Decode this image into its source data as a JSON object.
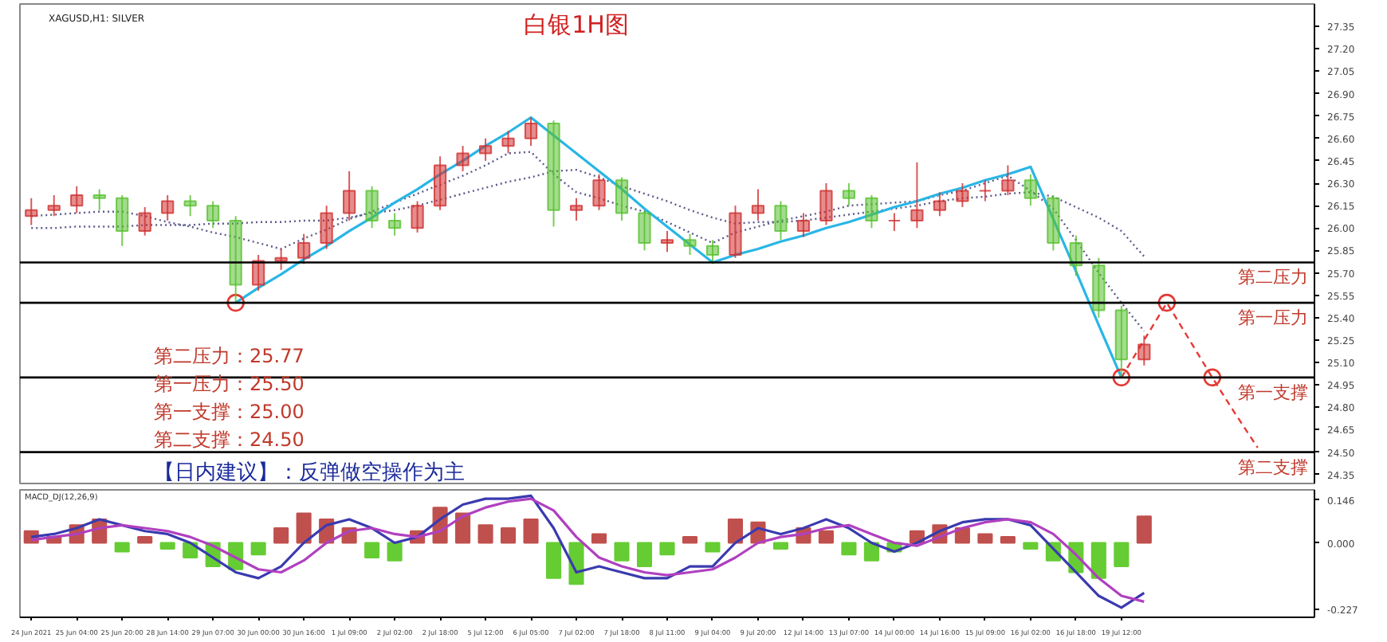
{
  "chart_data": [
    {
      "type": "candlestick",
      "title": "白银1H图",
      "subtitle": "XAGUSD,H1: SILVER",
      "categories": [
        null,
        null,
        null,
        null,
        null,
        null,
        null,
        null,
        null,
        null,
        null,
        null,
        null,
        null,
        null,
        null,
        null,
        null,
        null,
        null,
        null,
        null,
        null,
        null,
        null,
        null,
        null,
        null,
        null,
        null,
        null,
        null,
        null,
        null,
        null,
        null,
        null,
        null,
        null,
        null,
        null,
        null,
        null,
        null,
        null,
        null,
        null,
        null,
        null,
        null,
        null,
        null,
        null,
        null,
        null,
        null,
        null
      ],
      "ohlc": [
        [
          26.08,
          26.2,
          26.02,
          26.12
        ],
        [
          26.12,
          26.22,
          26.08,
          26.15
        ],
        [
          26.15,
          26.28,
          26.1,
          26.22
        ],
        [
          26.22,
          26.26,
          26.12,
          26.2
        ],
        [
          26.2,
          26.22,
          25.88,
          25.98
        ],
        [
          25.98,
          26.14,
          25.95,
          26.1
        ],
        [
          26.1,
          26.22,
          26.05,
          26.18
        ],
        [
          26.18,
          26.22,
          26.08,
          26.15
        ],
        [
          26.15,
          26.18,
          26.0,
          26.05
        ],
        [
          26.05,
          26.08,
          25.5,
          25.62
        ],
        [
          25.62,
          25.82,
          25.58,
          25.78
        ],
        [
          25.78,
          25.86,
          25.72,
          25.8
        ],
        [
          25.8,
          25.96,
          25.76,
          25.9
        ],
        [
          25.9,
          26.15,
          25.86,
          26.1
        ],
        [
          26.1,
          26.38,
          26.05,
          26.25
        ],
        [
          26.25,
          26.28,
          26.0,
          26.05
        ],
        [
          26.05,
          26.1,
          25.95,
          26.0
        ],
        [
          26.0,
          26.18,
          25.97,
          26.15
        ],
        [
          26.15,
          26.48,
          26.12,
          26.42
        ],
        [
          26.42,
          26.55,
          26.38,
          26.5
        ],
        [
          26.5,
          26.6,
          26.45,
          26.55
        ],
        [
          26.55,
          26.65,
          26.5,
          26.6
        ],
        [
          26.6,
          26.74,
          26.55,
          26.7
        ],
        [
          26.7,
          26.72,
          26.01,
          26.12
        ],
        [
          26.12,
          26.2,
          26.05,
          26.15
        ],
        [
          26.15,
          26.36,
          26.12,
          26.32
        ],
        [
          26.32,
          26.34,
          26.05,
          26.1
        ],
        [
          26.1,
          26.12,
          25.85,
          25.9
        ],
        [
          25.9,
          25.98,
          25.84,
          25.92
        ],
        [
          25.92,
          25.96,
          25.82,
          25.88
        ],
        [
          25.88,
          25.92,
          25.76,
          25.82
        ],
        [
          25.82,
          26.15,
          25.8,
          26.1
        ],
        [
          26.1,
          26.26,
          26.05,
          26.15
        ],
        [
          26.15,
          26.18,
          25.92,
          25.98
        ],
        [
          25.98,
          26.1,
          25.94,
          26.05
        ],
        [
          26.05,
          26.3,
          26.02,
          26.25
        ],
        [
          26.25,
          26.3,
          26.15,
          26.2
        ],
        [
          26.2,
          26.22,
          26.0,
          26.05
        ],
        [
          26.05,
          26.1,
          25.98,
          26.05
        ],
        [
          26.05,
          26.44,
          26.0,
          26.12
        ],
        [
          26.12,
          26.24,
          26.08,
          26.18
        ],
        [
          26.18,
          26.3,
          26.14,
          26.25
        ],
        [
          26.25,
          26.32,
          26.18,
          26.25
        ],
        [
          26.25,
          26.42,
          26.22,
          26.32
        ],
        [
          26.32,
          26.36,
          26.15,
          26.2
        ],
        [
          26.2,
          26.22,
          25.85,
          25.9
        ],
        [
          25.9,
          25.95,
          25.68,
          25.75
        ],
        [
          25.75,
          25.8,
          25.4,
          25.45
        ],
        [
          25.45,
          25.48,
          25.0,
          25.12
        ],
        [
          25.12,
          25.28,
          25.08,
          25.22
        ],
        null,
        null,
        null,
        null,
        null,
        null,
        null
      ],
      "series": [
        {
          "type": "line",
          "color": "#5c5c8c",
          "line_style": "dotted",
          "values": [
            26.0,
            26.0,
            26.01,
            26.01,
            26.01,
            26.02,
            26.02,
            26.02,
            26.03,
            26.03,
            26.04,
            26.04,
            26.05,
            26.05,
            26.07,
            26.1,
            26.12,
            26.15,
            26.19,
            26.23,
            26.27,
            26.31,
            26.34,
            26.38,
            26.39,
            26.34,
            26.28,
            26.23,
            26.18,
            26.12,
            26.07,
            26.03,
            26.04,
            26.04,
            26.05,
            26.07,
            26.09,
            26.11,
            26.13,
            26.15,
            26.18,
            26.2,
            26.21,
            26.23,
            26.24,
            26.21,
            26.14,
            26.07,
            25.98,
            25.81,
            null,
            null,
            null,
            null,
            null,
            null,
            null
          ]
        },
        {
          "type": "line",
          "color": "#5c5c8c",
          "line_style": "dotted",
          "values": [
            26.08,
            26.09,
            26.1,
            26.11,
            26.11,
            26.08,
            26.04,
            26.01,
            25.97,
            25.94,
            25.9,
            25.86,
            25.93,
            25.99,
            26.06,
            26.11,
            26.17,
            26.23,
            26.29,
            26.35,
            26.42,
            26.5,
            26.51,
            26.36,
            26.24,
            26.2,
            26.15,
            26.11,
            26.04,
            25.97,
            25.9,
            25.97,
            26.01,
            26.05,
            26.08,
            26.11,
            26.15,
            26.16,
            26.17,
            26.18,
            26.22,
            26.25,
            26.3,
            26.35,
            26.25,
            26.13,
            25.92,
            25.7,
            25.5,
            25.31,
            null,
            null,
            null,
            null,
            null,
            null,
            null
          ]
        },
        {
          "type": "line",
          "color": "#29b6e6",
          "line_style": "solid",
          "values": [
            null,
            null,
            null,
            null,
            null,
            null,
            null,
            null,
            null,
            25.5,
            25.6,
            25.69,
            25.79,
            25.88,
            25.98,
            26.07,
            26.17,
            26.26,
            26.36,
            26.45,
            26.55,
            26.64,
            26.74,
            26.62,
            26.5,
            26.38,
            26.26,
            26.13,
            26.01,
            25.89,
            25.77,
            25.82,
            25.86,
            25.91,
            25.95,
            26.0,
            26.04,
            26.09,
            26.14,
            26.18,
            26.23,
            26.27,
            26.32,
            26.36,
            26.41,
            26.06,
            25.71,
            25.35,
            25.0,
            null,
            null,
            null,
            null,
            null,
            null,
            null,
            null
          ]
        },
        {
          "type": "line",
          "color": "#e53935",
          "line_style": "dashed",
          "values": [
            null,
            null,
            null,
            null,
            null,
            null,
            null,
            null,
            null,
            null,
            null,
            null,
            null,
            null,
            null,
            null,
            null,
            null,
            null,
            null,
            null,
            null,
            null,
            null,
            null,
            null,
            null,
            null,
            null,
            null,
            null,
            null,
            null,
            null,
            null,
            null,
            null,
            null,
            null,
            null,
            null,
            null,
            null,
            null,
            null,
            null,
            null,
            null,
            25.0,
            25.25,
            25.5,
            25.25,
            25.0,
            24.76,
            24.53,
            null,
            null
          ]
        },
        {
          "type": "scatter",
          "color": "#e53935",
          "marker": "circle",
          "values": [
            null,
            null,
            null,
            null,
            null,
            null,
            null,
            null,
            null,
            25.5,
            null,
            null,
            null,
            null,
            null,
            null,
            null,
            null,
            null,
            null,
            null,
            null,
            null,
            null,
            null,
            null,
            null,
            null,
            null,
            null,
            null,
            null,
            null,
            null,
            null,
            null,
            null,
            null,
            null,
            null,
            null,
            null,
            null,
            null,
            null,
            null,
            null,
            null,
            25.0,
            null,
            25.5,
            null,
            25.0,
            null,
            null,
            null,
            null
          ]
        }
      ],
      "ref_lines": [
        {
          "axis": "y",
          "value": 25.77,
          "label": "第二压力",
          "color": "#000000"
        },
        {
          "axis": "y",
          "value": 25.5,
          "label": "第一压力",
          "color": "#000000"
        },
        {
          "axis": "y",
          "value": 25.0,
          "label": "第一支撑",
          "color": "#000000"
        },
        {
          "axis": "y",
          "value": 24.5,
          "label": "第二支撑",
          "color": "#000000"
        }
      ],
      "annotations": [
        "第二压力：25.77",
        "第一压力：25.50",
        "第一支撑：25.00",
        "第二支撑：24.50",
        "【日内建议】：反弹做空操作为主"
      ],
      "ylim": [
        24.29,
        27.5
      ],
      "yticks": [
        {
          "value": 27.35,
          "label": "27.35"
        },
        {
          "value": 27.2,
          "label": "27.20"
        },
        {
          "value": 27.05,
          "label": "27.05"
        },
        {
          "value": 26.9,
          "label": "26.90"
        },
        {
          "value": 26.75,
          "label": "26.75"
        },
        {
          "value": 26.6,
          "label": "26.60"
        },
        {
          "value": 26.45,
          "label": "26.45"
        },
        {
          "value": 26.3,
          "label": "26.30"
        },
        {
          "value": 26.15,
          "label": "26.15"
        },
        {
          "value": 26.0,
          "label": "26.00"
        },
        {
          "value": 25.85,
          "label": "25.85"
        },
        {
          "value": 25.7,
          "label": "25.70"
        },
        {
          "value": 25.55,
          "label": "25.55"
        },
        {
          "value": 25.4,
          "label": "25.40"
        },
        {
          "value": 25.25,
          "label": "25.25"
        },
        {
          "value": 25.1,
          "label": "25.10"
        },
        {
          "value": 24.95,
          "label": "24.95"
        },
        {
          "value": 24.8,
          "label": "24.80"
        },
        {
          "value": 24.65,
          "label": "24.65"
        },
        {
          "value": 24.5,
          "label": "24.50"
        },
        {
          "value": 24.35,
          "label": "24.35"
        }
      ],
      "tick_labels": "y",
      "grid": false
    },
    {
      "type": "bar",
      "title": "MACD_DJ(12,26,9)",
      "categories": [
        "24 Jun 2021",
        null,
        "25 Jun 04:00",
        null,
        "25 Jun 20:00",
        null,
        "28 Jun 14:00",
        null,
        "29 Jun 07:00",
        null,
        "30 Jun 00:00",
        null,
        "30 Jun 16:00",
        null,
        "1 Jul 09:00",
        null,
        "2 Jul 02:00",
        null,
        "2 Jul 18:00",
        null,
        "5 Jul 12:00",
        null,
        "6 Jul 05:00",
        null,
        "7 Jul 02:00",
        null,
        "7 Jul 18:00",
        null,
        "8 Jul 11:00",
        null,
        "9 Jul 04:00",
        null,
        "9 Jul 20:00",
        null,
        "12 Jul 14:00",
        null,
        "13 Jul 07:00",
        null,
        "14 Jul 00:00",
        null,
        "14 Jul 16:00",
        null,
        "15 Jul 09:00",
        null,
        "16 Jul 02:00",
        null,
        "16 Jul 18:00",
        null,
        "19 Jul 12:00",
        null,
        null,
        null,
        null,
        null,
        null,
        null,
        null
      ],
      "series": [
        {
          "type": "bar",
          "values": [
            0.04,
            0.02,
            0.06,
            0.08,
            -0.03,
            0.02,
            -0.02,
            -0.05,
            -0.08,
            -0.09,
            -0.04,
            0.05,
            0.1,
            0.08,
            0.05,
            -0.05,
            -0.06,
            0.04,
            0.12,
            0.1,
            0.06,
            0.05,
            0.08,
            -0.12,
            -0.14,
            0.03,
            -0.06,
            -0.08,
            -0.04,
            0.02,
            -0.03,
            0.08,
            0.07,
            -0.02,
            0.05,
            0.04,
            -0.04,
            -0.06,
            -0.03,
            0.04,
            0.06,
            0.05,
            0.03,
            0.02,
            -0.02,
            -0.06,
            -0.1,
            -0.12,
            -0.08,
            0.09,
            null,
            null,
            null,
            null,
            null,
            null,
            null
          ],
          "colors": [
            "#c0504d",
            "#c0504d",
            "#c0504d",
            "#c0504d",
            "#66cc33",
            "#c0504d",
            "#66cc33",
            "#66cc33",
            "#66cc33",
            "#66cc33",
            "#66cc33",
            "#c0504d",
            "#c0504d",
            "#c0504d",
            "#c0504d",
            "#66cc33",
            "#66cc33",
            "#c0504d",
            "#c0504d",
            "#c0504d",
            "#c0504d",
            "#c0504d",
            "#c0504d",
            "#66cc33",
            "#66cc33",
            "#c0504d",
            "#66cc33",
            "#66cc33",
            "#66cc33",
            "#c0504d",
            "#66cc33",
            "#c0504d",
            "#c0504d",
            "#66cc33",
            "#c0504d",
            "#c0504d",
            "#66cc33",
            "#66cc33",
            "#66cc33",
            "#c0504d",
            "#c0504d",
            "#c0504d",
            "#c0504d",
            "#c0504d",
            "#66cc33",
            "#66cc33",
            "#66cc33",
            "#66cc33",
            "#66cc33",
            "#c0504d",
            null,
            null,
            null,
            null,
            null,
            null,
            null
          ]
        },
        {
          "type": "line",
          "color": "#3a3ab0",
          "line_style": "solid",
          "values": [
            0.02,
            0.03,
            0.05,
            0.08,
            0.06,
            0.04,
            0.03,
            0.0,
            -0.05,
            -0.1,
            -0.12,
            -0.08,
            0.0,
            0.06,
            0.08,
            0.05,
            0.0,
            0.02,
            0.08,
            0.13,
            0.15,
            0.15,
            0.16,
            0.05,
            -0.1,
            -0.08,
            -0.1,
            -0.12,
            -0.12,
            -0.08,
            -0.08,
            0.0,
            0.05,
            0.03,
            0.05,
            0.08,
            0.05,
            0.0,
            -0.03,
            0.0,
            0.04,
            0.07,
            0.08,
            0.08,
            0.06,
            -0.02,
            -0.1,
            -0.18,
            -0.22,
            -0.17,
            null,
            null,
            null,
            null,
            null,
            null,
            null
          ]
        },
        {
          "type": "line",
          "color": "#b040c0",
          "line_style": "solid",
          "values": [
            0.01,
            0.02,
            0.03,
            0.05,
            0.06,
            0.05,
            0.04,
            0.02,
            -0.01,
            -0.05,
            -0.09,
            -0.1,
            -0.06,
            0.0,
            0.04,
            0.05,
            0.03,
            0.02,
            0.04,
            0.09,
            0.12,
            0.14,
            0.15,
            0.11,
            0.02,
            -0.05,
            -0.08,
            -0.1,
            -0.11,
            -0.1,
            -0.09,
            -0.05,
            0.0,
            0.02,
            0.03,
            0.05,
            0.06,
            0.03,
            0.0,
            -0.01,
            0.02,
            0.05,
            0.07,
            0.08,
            0.07,
            0.03,
            -0.04,
            -0.12,
            -0.18,
            -0.2,
            null,
            null,
            null,
            null,
            null,
            null,
            null
          ]
        }
      ],
      "ylim": [
        -0.253,
        0.18
      ],
      "yticks": [
        {
          "value": 0.146,
          "label": "0.146"
        },
        {
          "value": 0,
          "label": "0.000"
        },
        {
          "value": -0.227,
          "label": "-0.227"
        }
      ],
      "grid": false
    }
  ]
}
